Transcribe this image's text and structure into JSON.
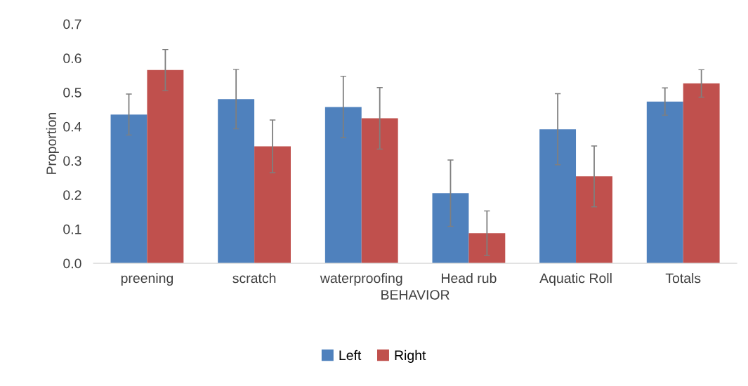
{
  "chart_data": {
    "type": "bar",
    "xlabel": "BEHAVIOR",
    "ylabel": "Proportion",
    "categories": [
      "preening",
      "scratch",
      "waterproofing",
      "Head rub",
      "Aquatic Roll",
      "Totals"
    ],
    "series": [
      {
        "name": "Left",
        "color": "#4f81bd",
        "values": [
          0.435,
          0.48,
          0.457,
          0.205,
          0.392,
          0.473
        ],
        "errors": [
          0.06,
          0.087,
          0.09,
          0.097,
          0.104,
          0.04
        ]
      },
      {
        "name": "Right",
        "color": "#c0504d",
        "values": [
          0.565,
          0.342,
          0.424,
          0.088,
          0.254,
          0.526
        ],
        "errors": [
          0.06,
          0.077,
          0.09,
          0.065,
          0.089,
          0.04
        ]
      }
    ],
    "ylim": [
      0,
      0.7
    ],
    "yticks": [
      {
        "value": 0,
        "label": "0.0"
      },
      {
        "value": 0.1,
        "label": "0.1"
      },
      {
        "value": 0.2,
        "label": "0.2"
      },
      {
        "value": 0.3,
        "label": "0.3"
      },
      {
        "value": 0.4,
        "label": "0.4"
      },
      {
        "value": 0.5,
        "label": "0.5"
      },
      {
        "value": 0.6,
        "label": "0.6"
      },
      {
        "value": 0.7,
        "label": "0.7"
      }
    ],
    "grid": false,
    "legend": "bottom"
  }
}
